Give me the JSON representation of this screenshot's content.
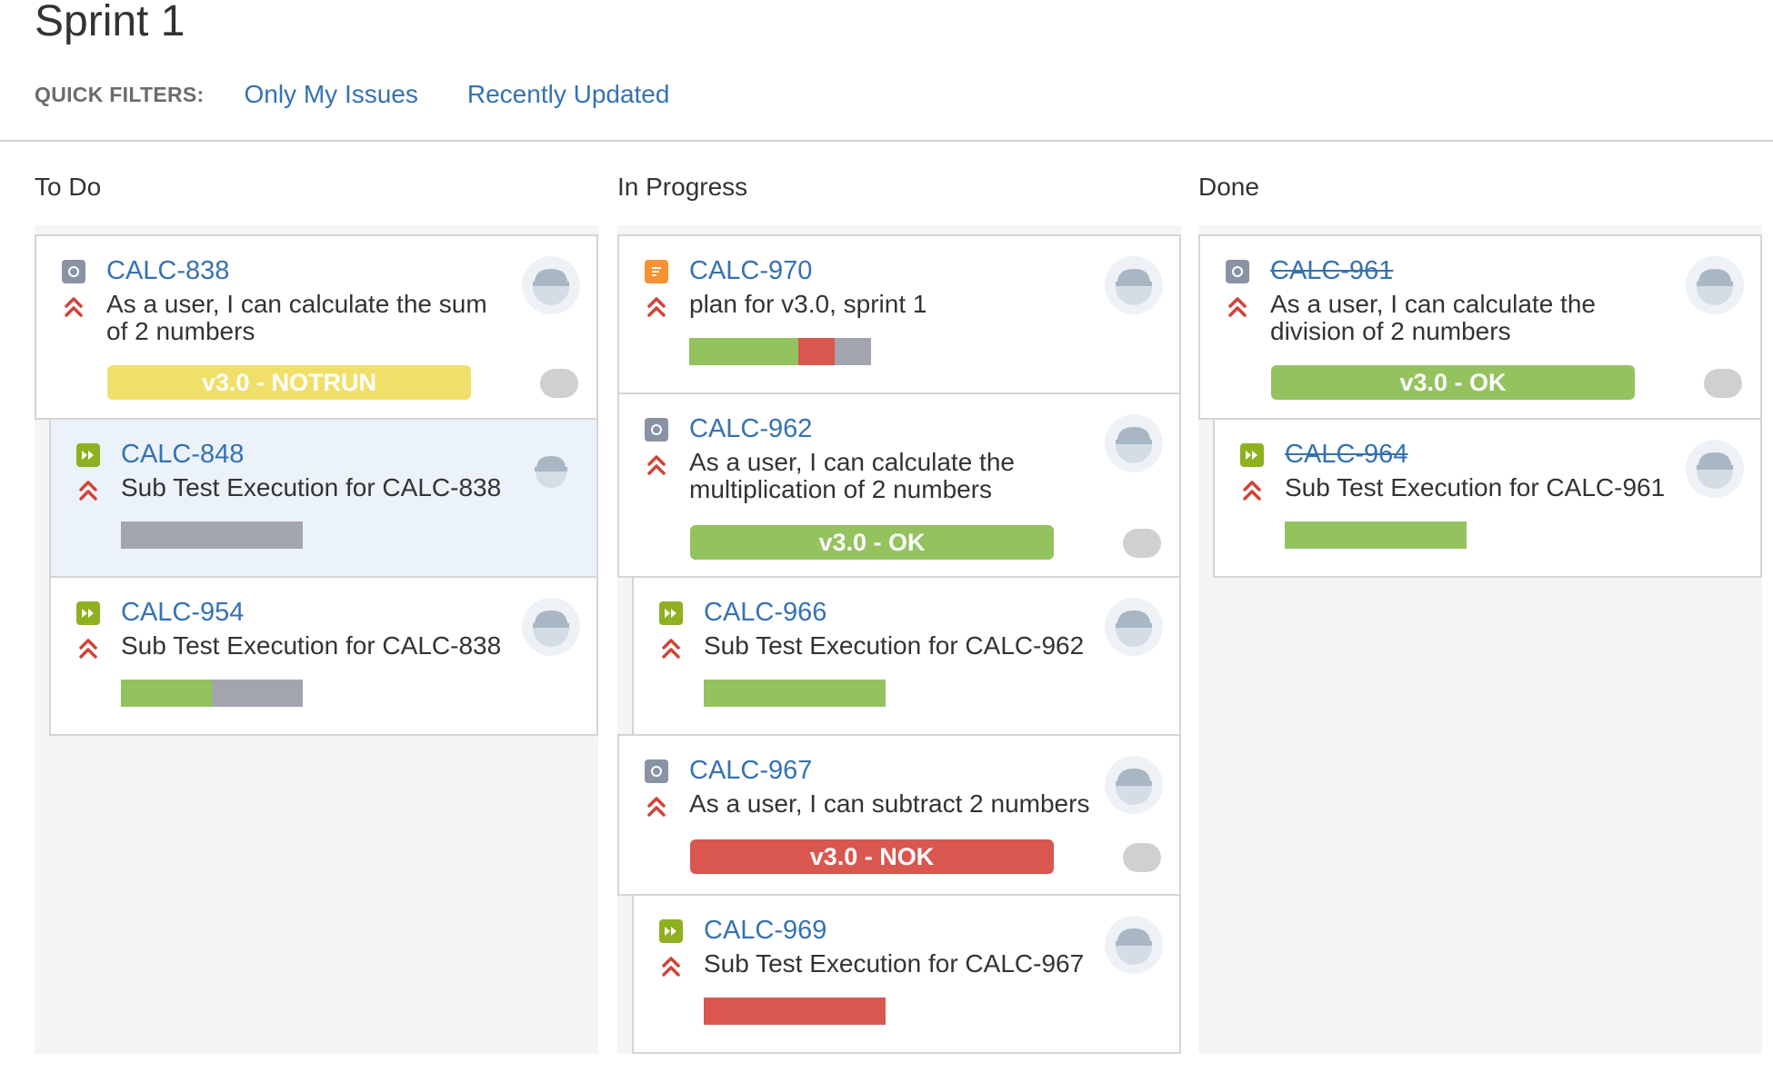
{
  "page_title": "Sprint 1",
  "quick_filters": {
    "label": "QUICK FILTERS:",
    "items": [
      "Only My Issues",
      "Recently Updated"
    ]
  },
  "columns": [
    {
      "title": "To Do"
    },
    {
      "title": "In Progress"
    },
    {
      "title": "Done"
    }
  ],
  "cards": {
    "c838": {
      "key": "CALC-838",
      "summary_1": "As a user, I can calculate the sum",
      "summary_2": "of 2 numbers",
      "badge": "v3.0 - NOTRUN"
    },
    "c848": {
      "key": "CALC-848",
      "summary": "Sub Test Execution for CALC-838",
      "progress": {
        "notrun": 1.0
      }
    },
    "c954": {
      "key": "CALC-954",
      "summary": "Sub Test Execution for CALC-838",
      "progress": {
        "passed": 0.5,
        "notrun": 0.5
      }
    },
    "c970": {
      "key": "CALC-970",
      "summary": "plan for v3.0, sprint 1",
      "progress": {
        "passed": 0.6,
        "failed": 0.2,
        "notrun": 0.2
      }
    },
    "c962": {
      "key": "CALC-962",
      "summary_1": "As a user, I can calculate the",
      "summary_2": "multiplication of 2 numbers",
      "badge": "v3.0 - OK"
    },
    "c966": {
      "key": "CALC-966",
      "summary": "Sub Test Execution for CALC-962",
      "progress": {
        "passed": 1.0
      }
    },
    "c967": {
      "key": "CALC-967",
      "summary": "As a user, I can subtract 2 numbers",
      "badge": "v3.0 - NOK"
    },
    "c969": {
      "key": "CALC-969",
      "summary": "Sub Test Execution for CALC-967",
      "progress": {
        "failed": 1.0
      }
    },
    "c961": {
      "key": "CALC-961",
      "summary_1": "As a user, I can calculate the",
      "summary_2": "division of 2 numbers",
      "badge": "v3.0 - OK"
    },
    "c964": {
      "key": "CALC-964",
      "summary": "Sub Test Execution for CALC-961",
      "progress": {
        "passed": 1.0
      }
    }
  },
  "colors": {
    "link": "#3572b0",
    "ok": "#94c25e",
    "nok": "#d9574e",
    "notrun_badge": "#f0e06a",
    "notrun_bar": "#a3a5ae",
    "priority": "#d04437"
  },
  "icons": {
    "test": "test-issue-icon",
    "plan": "test-plan-icon",
    "exec": "test-execution-icon",
    "priority": "highest-priority-icon",
    "avatar": "default-avatar-icon"
  }
}
